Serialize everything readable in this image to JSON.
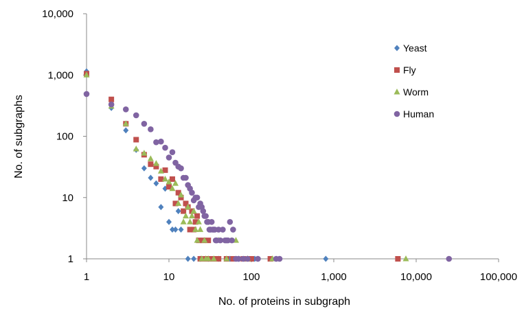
{
  "chart_data": {
    "type": "scatter",
    "title": "",
    "xlabel": "No. of proteins in subgraph",
    "ylabel": "No. of subgraphs",
    "xscale": "log",
    "yscale": "log",
    "xlim": [
      1,
      100000
    ],
    "ylim": [
      1,
      10000
    ],
    "xticks": [
      1,
      10,
      100,
      1000,
      10000,
      100000
    ],
    "xtick_labels": [
      "1",
      "10",
      "100",
      "1,000",
      "10,000",
      "100,000"
    ],
    "yticks": [
      1,
      10,
      100,
      1000,
      10000
    ],
    "ytick_labels": [
      "1",
      "10",
      "100",
      "1,000",
      "10,000"
    ],
    "grid": false,
    "legend_position": "top-right",
    "series": [
      {
        "name": "Yeast",
        "marker": "diamond",
        "color": "#4f81bd",
        "points": [
          [
            1,
            1150
          ],
          [
            2,
            290
          ],
          [
            3,
            125
          ],
          [
            4,
            60
          ],
          [
            5,
            30
          ],
          [
            6,
            21
          ],
          [
            7,
            17
          ],
          [
            8,
            7
          ],
          [
            9,
            14
          ],
          [
            10,
            4
          ],
          [
            11,
            3
          ],
          [
            12,
            3
          ],
          [
            13,
            6
          ],
          [
            14,
            3
          ],
          [
            17,
            1
          ],
          [
            20,
            1
          ],
          [
            24,
            1
          ],
          [
            30,
            1
          ],
          [
            40,
            1
          ],
          [
            55,
            1
          ],
          [
            70,
            1
          ],
          [
            110,
            1
          ],
          [
            800,
            1
          ]
        ]
      },
      {
        "name": "Fly",
        "marker": "square",
        "color": "#c0504d",
        "points": [
          [
            1,
            1050
          ],
          [
            2,
            400
          ],
          [
            3,
            160
          ],
          [
            4,
            88
          ],
          [
            5,
            50
          ],
          [
            6,
            35
          ],
          [
            7,
            32
          ],
          [
            8,
            20
          ],
          [
            9,
            28
          ],
          [
            10,
            15
          ],
          [
            11,
            20
          ],
          [
            12,
            8
          ],
          [
            13,
            12
          ],
          [
            14,
            10
          ],
          [
            15,
            6
          ],
          [
            16,
            8
          ],
          [
            17,
            7
          ],
          [
            18,
            3
          ],
          [
            19,
            6
          ],
          [
            20,
            3
          ],
          [
            21,
            4
          ],
          [
            22,
            5
          ],
          [
            23,
            2
          ],
          [
            24,
            1
          ],
          [
            26,
            2
          ],
          [
            28,
            1
          ],
          [
            30,
            2
          ],
          [
            32,
            1
          ],
          [
            35,
            1
          ],
          [
            40,
            1
          ],
          [
            50,
            1
          ],
          [
            60,
            1
          ],
          [
            80,
            1
          ],
          [
            100,
            1
          ],
          [
            170,
            1
          ],
          [
            6000,
            1
          ]
        ]
      },
      {
        "name": "Worm",
        "marker": "triangle",
        "color": "#9bbb59",
        "points": [
          [
            1,
            1000
          ],
          [
            2,
            310
          ],
          [
            3,
            160
          ],
          [
            4,
            62
          ],
          [
            5,
            53
          ],
          [
            6,
            43
          ],
          [
            7,
            36
          ],
          [
            8,
            27
          ],
          [
            9,
            20
          ],
          [
            10,
            18
          ],
          [
            11,
            14
          ],
          [
            12,
            17
          ],
          [
            13,
            8
          ],
          [
            14,
            11
          ],
          [
            15,
            4
          ],
          [
            16,
            5
          ],
          [
            17,
            7
          ],
          [
            18,
            4
          ],
          [
            19,
            5
          ],
          [
            20,
            6
          ],
          [
            21,
            3
          ],
          [
            22,
            2
          ],
          [
            23,
            4
          ],
          [
            24,
            3
          ],
          [
            25,
            1
          ],
          [
            27,
            2
          ],
          [
            28,
            1
          ],
          [
            30,
            1
          ],
          [
            35,
            1
          ],
          [
            40,
            2
          ],
          [
            50,
            1
          ],
          [
            65,
            2
          ],
          [
            90,
            1
          ],
          [
            180,
            1
          ],
          [
            7500,
            1
          ]
        ]
      },
      {
        "name": "Human",
        "marker": "circle",
        "color": "#8064a2",
        "points": [
          [
            1,
            490
          ],
          [
            2,
            330
          ],
          [
            3,
            275
          ],
          [
            4,
            220
          ],
          [
            5,
            160
          ],
          [
            6,
            130
          ],
          [
            7,
            80
          ],
          [
            8,
            82
          ],
          [
            9,
            65
          ],
          [
            10,
            45
          ],
          [
            11,
            55
          ],
          [
            12,
            37
          ],
          [
            13,
            32
          ],
          [
            14,
            30
          ],
          [
            15,
            21
          ],
          [
            16,
            21
          ],
          [
            17,
            16
          ],
          [
            18,
            14
          ],
          [
            19,
            12
          ],
          [
            20,
            9
          ],
          [
            21,
            10
          ],
          [
            22,
            10
          ],
          [
            23,
            7
          ],
          [
            24,
            8
          ],
          [
            25,
            7
          ],
          [
            26,
            6
          ],
          [
            27,
            5
          ],
          [
            28,
            5
          ],
          [
            29,
            4
          ],
          [
            30,
            4
          ],
          [
            31,
            3
          ],
          [
            32,
            3
          ],
          [
            33,
            4
          ],
          [
            34,
            3
          ],
          [
            35,
            3
          ],
          [
            36,
            3
          ],
          [
            37,
            2
          ],
          [
            38,
            2
          ],
          [
            40,
            3
          ],
          [
            42,
            2
          ],
          [
            45,
            3
          ],
          [
            48,
            2
          ],
          [
            50,
            2
          ],
          [
            52,
            2
          ],
          [
            55,
            4
          ],
          [
            58,
            2
          ],
          [
            60,
            3
          ],
          [
            65,
            1
          ],
          [
            70,
            1
          ],
          [
            80,
            1
          ],
          [
            90,
            1
          ],
          [
            120,
            1
          ],
          [
            200,
            1
          ],
          [
            220,
            1
          ],
          [
            25000,
            1
          ]
        ]
      }
    ]
  }
}
